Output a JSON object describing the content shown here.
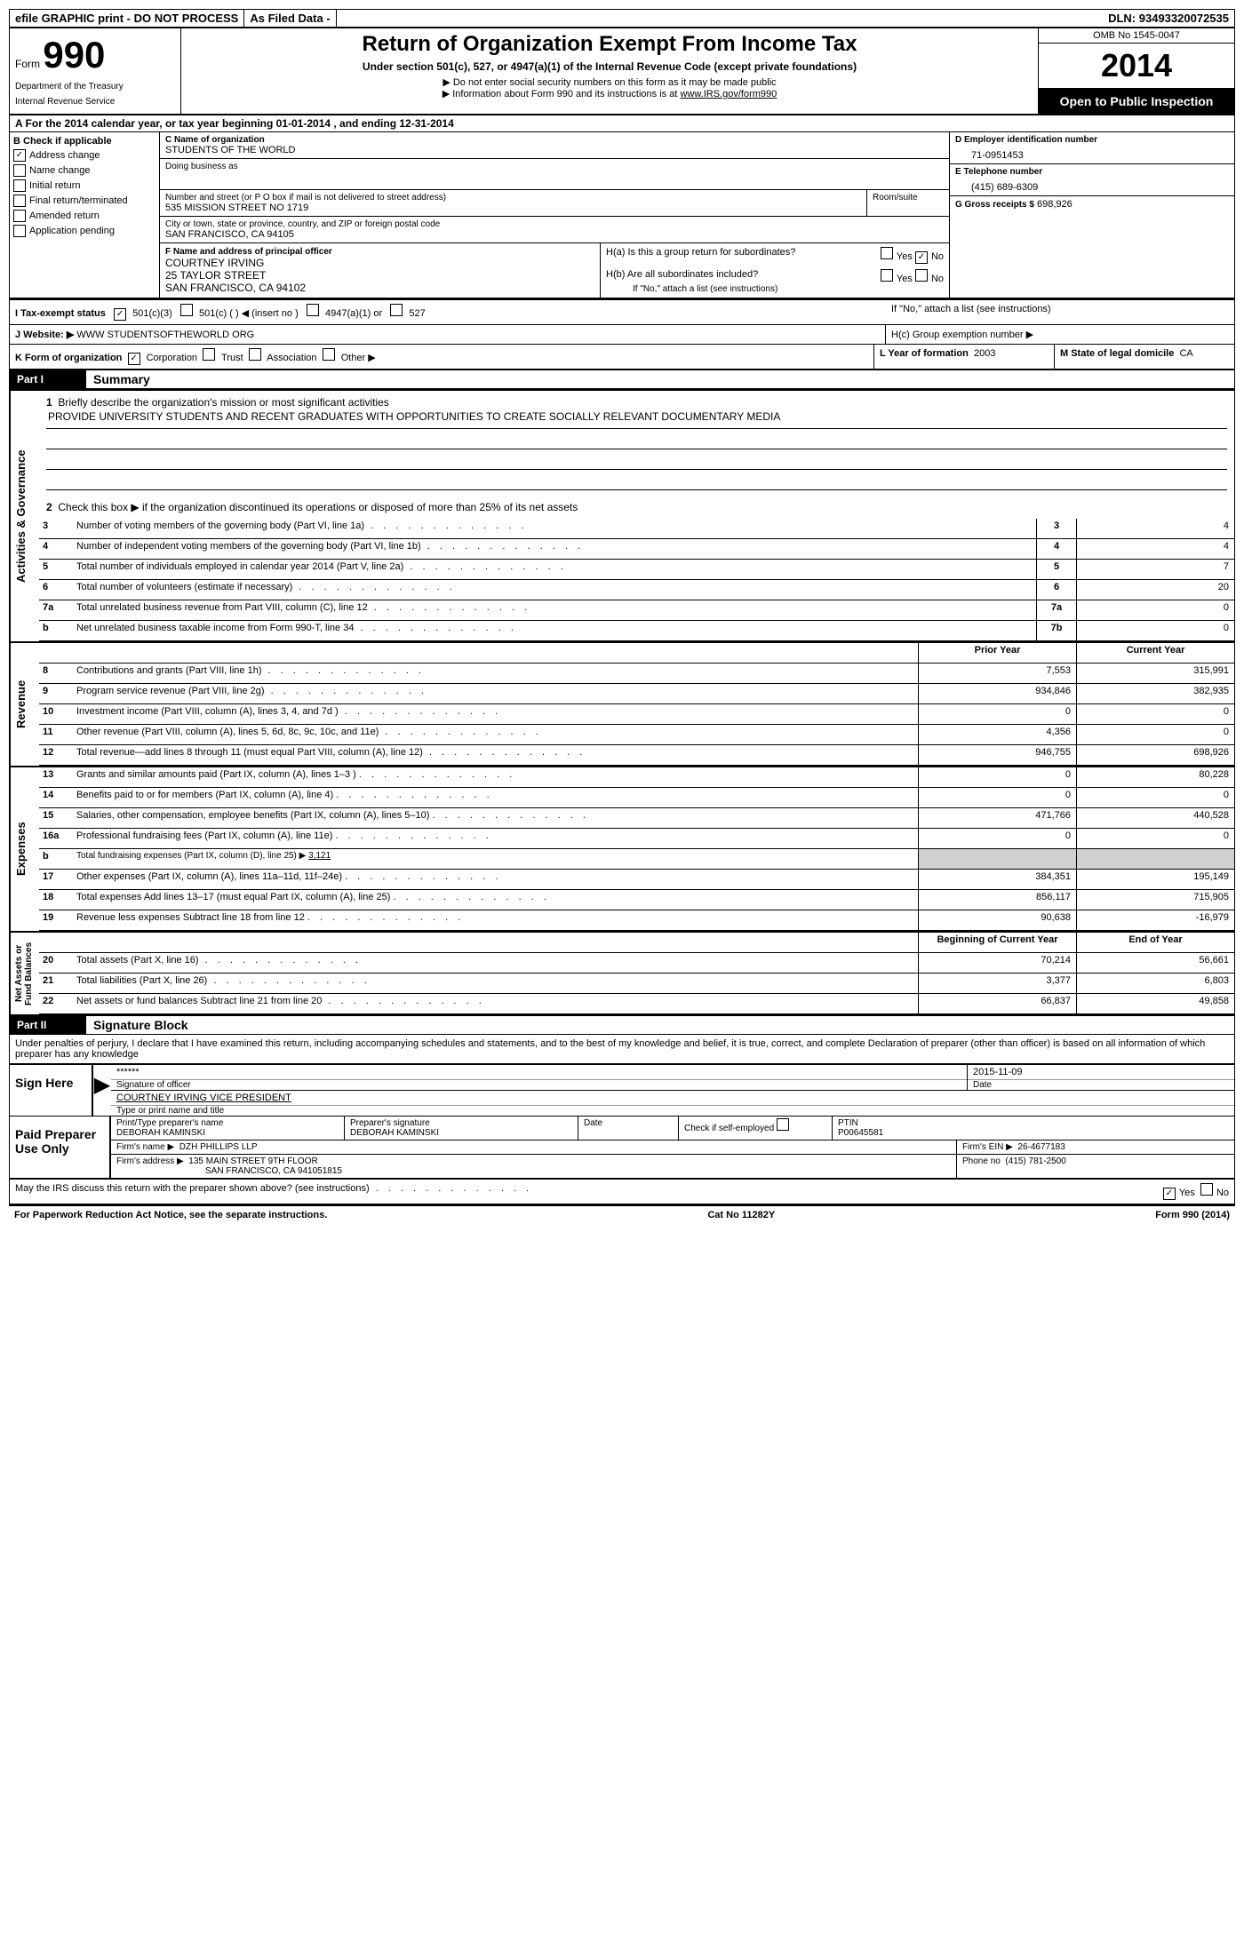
{
  "topbar": {
    "efile": "efile GRAPHIC print - DO NOT PROCESS",
    "asfiled": "As Filed Data -",
    "dln_label": "DLN:",
    "dln": "93493320072535"
  },
  "header": {
    "form_label": "Form",
    "form_num": "990",
    "dept1": "Department of the Treasury",
    "dept2": "Internal Revenue Service",
    "title": "Return of Organization Exempt From Income Tax",
    "subtitle": "Under section 501(c), 527, or 4947(a)(1) of the Internal Revenue Code (except private foundations)",
    "note1": "▶ Do not enter social security numbers on this form as it may be made public",
    "note2_pre": "▶ Information about Form 990 and its instructions is at ",
    "note2_link": "www.IRS.gov/form990",
    "omb": "OMB No 1545-0047",
    "year": "2014",
    "open": "Open to Public Inspection"
  },
  "section_a": "A For the 2014 calendar year, or tax year beginning 01-01-2014    , and ending 12-31-2014",
  "col_b": {
    "header": "B  Check if applicable",
    "items": [
      "Address change",
      "Name change",
      "Initial return",
      "Final return/terminated",
      "Amended return",
      "Application pending"
    ],
    "checked_idx": 0
  },
  "col_c": {
    "label_c": "C Name of organization",
    "org": "STUDENTS OF THE WORLD",
    "dba_label": "Doing business as",
    "dba": "",
    "addr_label": "Number and street (or P O  box if mail is not delivered to street address)",
    "room_label": "Room/suite",
    "addr": "535 MISSION STREET NO 1719",
    "city_label": "City or town, state or province, country, and ZIP or foreign postal code",
    "city": "SAN FRANCISCO, CA  94105"
  },
  "col_d": {
    "label": "D Employer identification number",
    "ein": "71-0951453",
    "e_label": "E Telephone number",
    "phone": "(415) 689-6309",
    "g_label": "G Gross receipts $",
    "gross": "698,926"
  },
  "col_f": {
    "label": "F  Name and address of principal officer",
    "name": "COURTNEY IRVING",
    "addr1": "25 TAYLOR STREET",
    "addr2": "SAN FRANCISCO, CA  94102"
  },
  "col_h": {
    "ha": "H(a)  Is this a group return for subordinates?",
    "hb": "H(b)  Are all subordinates included?",
    "hb_note": "If \"No,\" attach a list  (see instructions)",
    "hc": "H(c)   Group exemption number ▶",
    "yes": "Yes",
    "no": "No"
  },
  "row_i": {
    "label": "I    Tax-exempt status",
    "opt1": "501(c)(3)",
    "opt2": "501(c) (  ) ◀ (insert no )",
    "opt3": "4947(a)(1) or",
    "opt4": "527"
  },
  "row_j": {
    "label": "J   Website: ▶",
    "val": "WWW STUDENTSOFTHEWORLD ORG"
  },
  "row_k": {
    "label": "K Form of organization",
    "opts": [
      "Corporation",
      "Trust",
      "Association",
      "Other ▶"
    ],
    "l_label": "L Year of formation",
    "l_val": "2003",
    "m_label": "M State of legal domicile",
    "m_val": "CA"
  },
  "part1": {
    "num": "Part I",
    "title": "Summary",
    "q1": "Briefly describe the organization's mission or most significant activities",
    "mission": "PROVIDE UNIVERSITY STUDENTS AND RECENT GRADUATES WITH OPPORTUNITIES TO CREATE SOCIALLY RELEVANT DOCUMENTARY MEDIA",
    "q2": "Check this box ▶       if the organization discontinued its operations or disposed of more than 25% of its net assets",
    "lines": [
      {
        "n": "3",
        "d": "Number of voting members of the governing body (Part VI, line 1a)",
        "box": "3",
        "v": "4"
      },
      {
        "n": "4",
        "d": "Number of independent voting members of the governing body (Part VI, line 1b)",
        "box": "4",
        "v": "4"
      },
      {
        "n": "5",
        "d": "Total number of individuals employed in calendar year 2014 (Part V, line 2a)",
        "box": "5",
        "v": "7"
      },
      {
        "n": "6",
        "d": "Total number of volunteers (estimate if necessary)",
        "box": "6",
        "v": "20"
      },
      {
        "n": "7a",
        "d": "Total unrelated business revenue from Part VIII, column (C), line 12",
        "box": "7a",
        "v": "0"
      },
      {
        "n": "b",
        "d": "Net unrelated business taxable income from Form 990-T, line 34",
        "box": "7b",
        "v": "0"
      }
    ]
  },
  "revenue": {
    "label": "Revenue",
    "prior_h": "Prior Year",
    "current_h": "Current Year",
    "rows": [
      {
        "n": "8",
        "d": "Contributions and grants (Part VIII, line 1h)",
        "p": "7,553",
        "c": "315,991"
      },
      {
        "n": "9",
        "d": "Program service revenue (Part VIII, line 2g)",
        "p": "934,846",
        "c": "382,935"
      },
      {
        "n": "10",
        "d": "Investment income (Part VIII, column (A), lines 3, 4, and 7d )",
        "p": "0",
        "c": "0"
      },
      {
        "n": "11",
        "d": "Other revenue (Part VIII, column (A), lines 5, 6d, 8c, 9c, 10c, and 11e)",
        "p": "4,356",
        "c": "0"
      },
      {
        "n": "12",
        "d": "Total revenue—add lines 8 through 11 (must equal Part VIII, column (A), line 12)",
        "p": "946,755",
        "c": "698,926"
      }
    ]
  },
  "expenses": {
    "label": "Expenses",
    "rows": [
      {
        "n": "13",
        "d": "Grants and similar amounts paid (Part IX, column (A), lines 1–3 )",
        "p": "0",
        "c": "80,228"
      },
      {
        "n": "14",
        "d": "Benefits paid to or for members (Part IX, column (A), line 4)",
        "p": "0",
        "c": "0"
      },
      {
        "n": "15",
        "d": "Salaries, other compensation, employee benefits (Part IX, column (A), lines 5–10)",
        "p": "471,766",
        "c": "440,528"
      },
      {
        "n": "16a",
        "d": "Professional fundraising fees (Part IX, column (A), line 11e)",
        "p": "0",
        "c": "0"
      },
      {
        "n": "b",
        "d": "Total fundraising expenses (Part IX, column (D), line 25) ▶",
        "extra": "3,121",
        "p": "",
        "c": "",
        "shade": true
      },
      {
        "n": "17",
        "d": "Other expenses (Part IX, column (A), lines 11a–11d, 11f–24e)",
        "p": "384,351",
        "c": "195,149"
      },
      {
        "n": "18",
        "d": "Total expenses  Add lines 13–17 (must equal Part IX, column (A), line 25)",
        "p": "856,117",
        "c": "715,905"
      },
      {
        "n": "19",
        "d": "Revenue less expenses  Subtract line 18 from line 12",
        "p": "90,638",
        "c": "-16,979"
      }
    ]
  },
  "netassets": {
    "label": "Net Assets or Fund Balances",
    "begin_h": "Beginning of Current Year",
    "end_h": "End of Year",
    "rows": [
      {
        "n": "20",
        "d": "Total assets (Part X, line 16)",
        "p": "70,214",
        "c": "56,661"
      },
      {
        "n": "21",
        "d": "Total liabilities (Part X, line 26)",
        "p": "3,377",
        "c": "6,803"
      },
      {
        "n": "22",
        "d": "Net assets or fund balances  Subtract line 21 from line 20",
        "p": "66,837",
        "c": "49,858"
      }
    ]
  },
  "part2": {
    "num": "Part II",
    "title": "Signature Block",
    "perjury": "Under penalties of perjury, I declare that I have examined this return, including accompanying schedules and statements, and to the best of my knowledge and belief, it is true, correct, and complete  Declaration of preparer (other than officer) is based on all information of which preparer has any knowledge"
  },
  "sign": {
    "label": "Sign Here",
    "sig_stars": "******",
    "sig_label": "Signature of officer",
    "date": "2015-11-09",
    "date_label": "Date",
    "name": "COURTNEY IRVING VICE PRESIDENT",
    "name_label": "Type or print name and title"
  },
  "preparer": {
    "label": "Paid Preparer Use Only",
    "name_label": "Print/Type preparer's name",
    "name": "DEBORAH KAMINSKI",
    "sig_label": "Preparer's signature",
    "sig": "DEBORAH KAMINSKI",
    "date_label": "Date",
    "check_label": "Check        if self-employed",
    "ptin_label": "PTIN",
    "ptin": "P00645581",
    "firm_label": "Firm's name     ▶",
    "firm": "DZH PHILLIPS LLP",
    "ein_label": "Firm's EIN ▶",
    "ein": "26-4677183",
    "addr_label": "Firm's address ▶",
    "addr1": "135 MAIN STREET 9TH FLOOR",
    "addr2": "SAN FRANCISCO, CA  941051815",
    "phone_label": "Phone no",
    "phone": "(415) 781-2500"
  },
  "discuss": {
    "q": "May the IRS discuss this return with the preparer shown above? (see instructions)",
    "yes": "Yes",
    "no": "No"
  },
  "footer": {
    "left": "For Paperwork Reduction Act Notice, see the separate instructions.",
    "mid": "Cat No  11282Y",
    "right": "Form 990 (2014)"
  }
}
